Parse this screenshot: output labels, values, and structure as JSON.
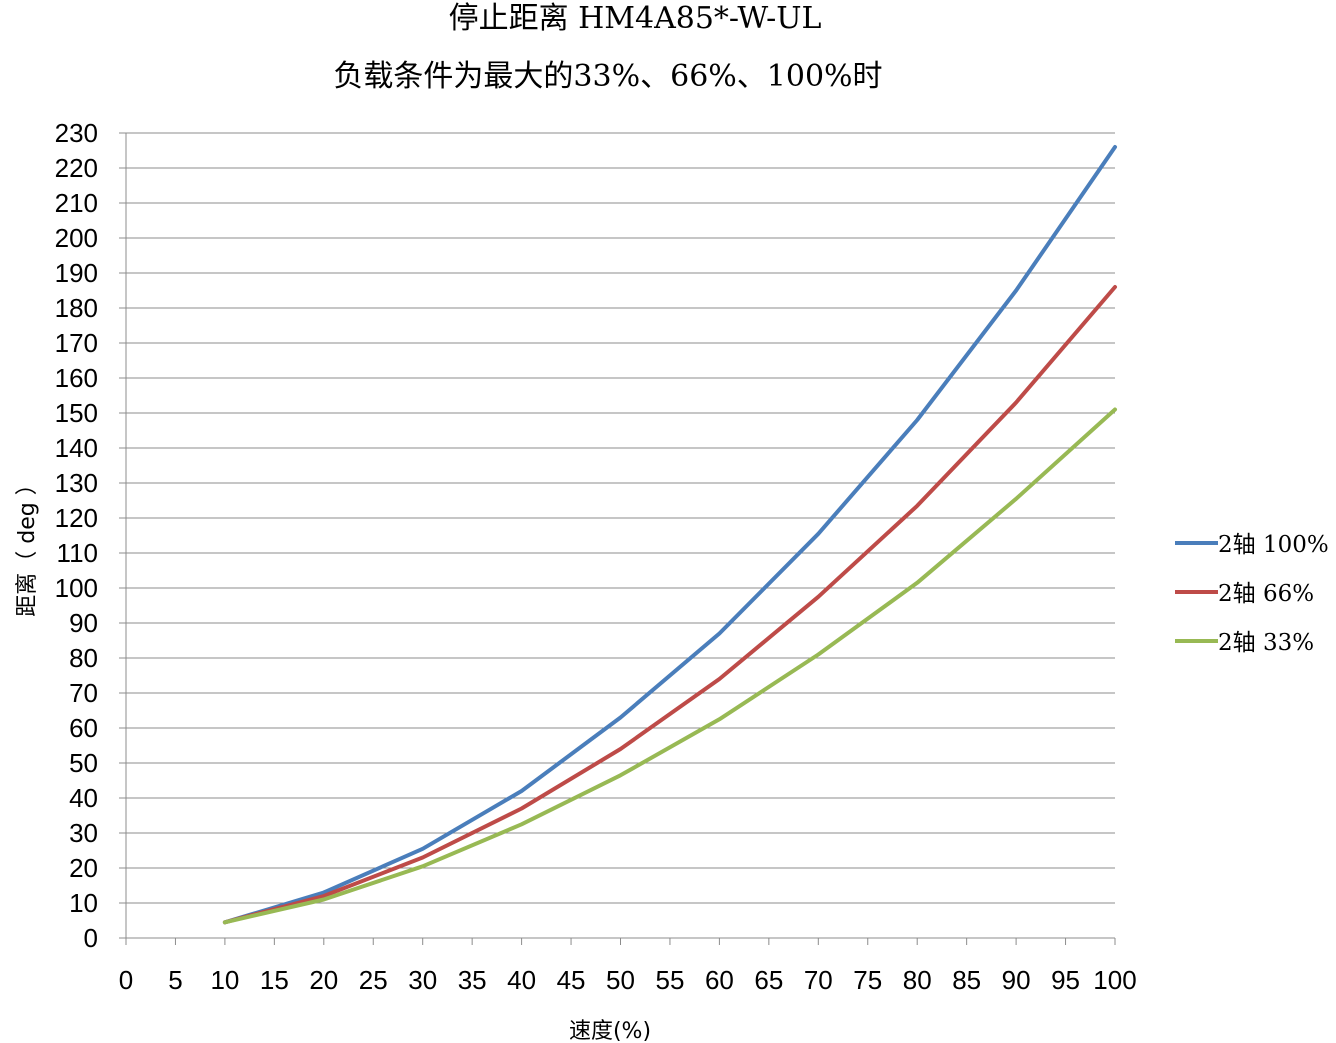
{
  "chart_data": {
    "type": "line",
    "title": "停止距离 HM4A85*-W-UL",
    "subtitle": "负载条件为最大的33%、66%、100%时",
    "xlabel": "速度(%)",
    "ylabel": "距离（ deg ）",
    "xlim": [
      0,
      100
    ],
    "ylim": [
      0,
      230
    ],
    "x_ticks": [
      0,
      5,
      10,
      15,
      20,
      25,
      30,
      35,
      40,
      45,
      50,
      55,
      60,
      65,
      70,
      75,
      80,
      85,
      90,
      95,
      100
    ],
    "y_ticks": [
      0,
      10,
      20,
      30,
      40,
      50,
      60,
      70,
      80,
      90,
      100,
      110,
      120,
      130,
      140,
      150,
      160,
      170,
      180,
      190,
      200,
      210,
      220,
      230
    ],
    "grid": "horizontal",
    "legend_position": "right",
    "x": [
      10,
      20,
      30,
      40,
      50,
      60,
      70,
      80,
      90,
      100
    ],
    "series": [
      {
        "name": "2轴 100%",
        "color": "#4a7ebb",
        "values": [
          4.5,
          13,
          25.5,
          42,
          63,
          87,
          115.5,
          148,
          185,
          226
        ]
      },
      {
        "name": "2轴 66%",
        "color": "#be4b48",
        "values": [
          4.5,
          12,
          23,
          37,
          54,
          74,
          97.5,
          123.5,
          153,
          186
        ]
      },
      {
        "name": "2轴 33%",
        "color": "#98b954",
        "values": [
          4.5,
          11,
          20.5,
          32.5,
          46.5,
          62.5,
          81,
          101.5,
          125.5,
          151
        ]
      }
    ]
  }
}
